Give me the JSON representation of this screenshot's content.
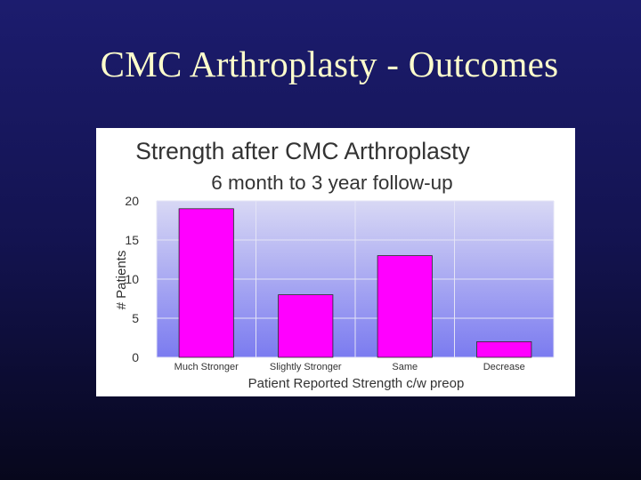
{
  "slide": {
    "title": "CMC Arthroplasty - Outcomes"
  },
  "chart_data": {
    "type": "bar",
    "title": "Strength after CMC Arthroplasty",
    "subtitle": "6 month to 3 year follow-up",
    "xlabel": "Patient Reported Strength c/w preop",
    "ylabel": "# Patients",
    "categories": [
      "Much Stronger",
      "Slightly Stronger",
      "Same",
      "Decrease"
    ],
    "values": [
      19,
      8,
      13,
      2
    ],
    "ylim": [
      0,
      20
    ],
    "yticks": [
      0,
      5,
      10,
      15,
      20
    ],
    "grid": true,
    "legend": "none",
    "bar_color": "#ff00ff",
    "plot_background": [
      "#7b7bf0",
      "#d8d8f4"
    ]
  }
}
